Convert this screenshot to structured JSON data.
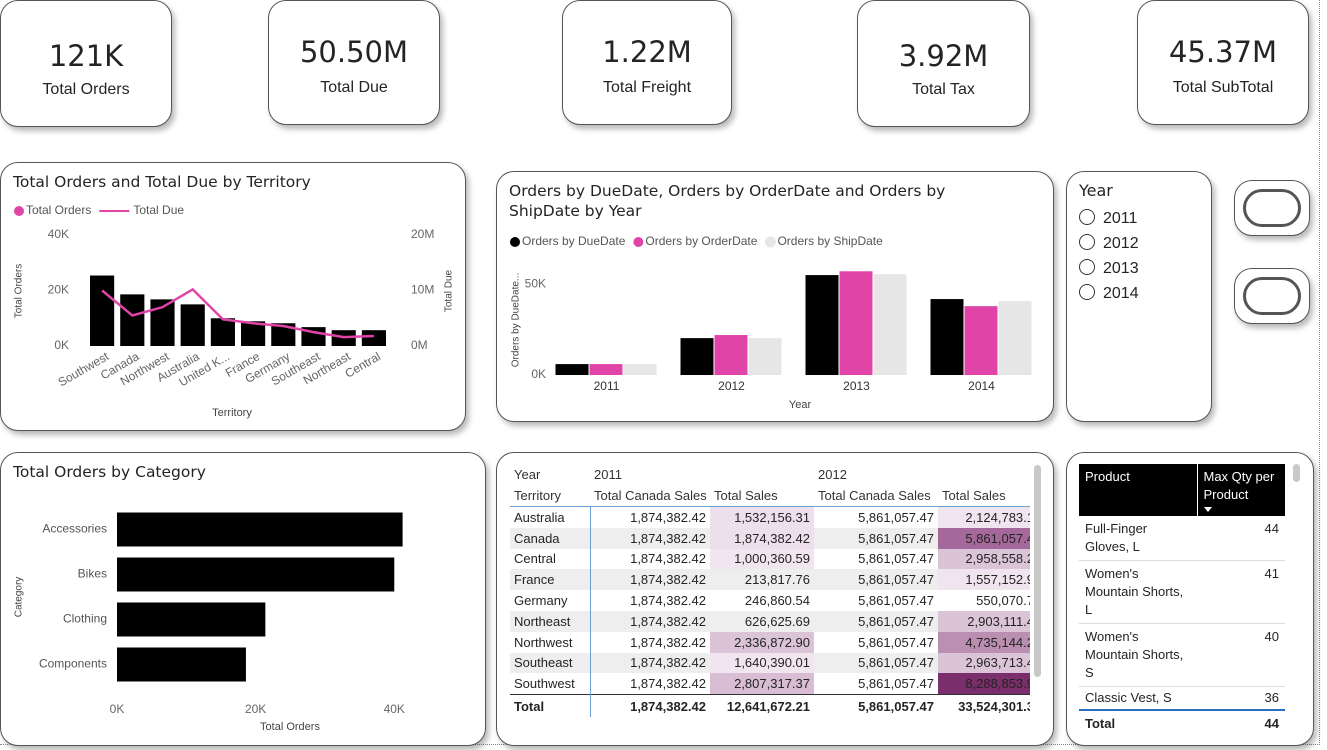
{
  "kpis": [
    {
      "value": "121K",
      "label": "Total Orders"
    },
    {
      "value": "50.50M",
      "label": "Total Due"
    },
    {
      "value": "1.22M",
      "label": "Total Freight"
    },
    {
      "value": "3.92M",
      "label": "Total Tax"
    },
    {
      "value": "45.37M",
      "label": "Total SubTotal"
    }
  ],
  "chart_data": [
    {
      "type": "bar_line",
      "title": "Total Orders and Total Due by Territory",
      "categories": [
        "Southwest",
        "Canada",
        "Northwest",
        "Australia",
        "United K...",
        "France",
        "Germany",
        "Southeast",
        "Northeast",
        "Central"
      ],
      "series": [
        {
          "name": "Total Orders",
          "color": "#000000",
          "legend_color": "#e044a7",
          "values": [
            25400,
            18600,
            16800,
            15000,
            10000,
            8900,
            8200,
            6800,
            5700,
            5700
          ]
        },
        {
          "name": "Total Due",
          "color": "#e044a7",
          "axis": "y2",
          "values": [
            10000000,
            5500000,
            7000000,
            10200000,
            4800000,
            4100000,
            3600000,
            2500000,
            1600000,
            1800000
          ]
        }
      ],
      "ylim": [
        0,
        40000
      ],
      "yticks": [
        {
          "value": 0,
          "label": "0K"
        },
        {
          "value": 20000,
          "label": "20K"
        },
        {
          "value": 40000,
          "label": "40K"
        }
      ],
      "y2lim": [
        0,
        20000000
      ],
      "y2ticks": [
        {
          "value": 0,
          "label": "0M"
        },
        {
          "value": 10000000,
          "label": "10M"
        },
        {
          "value": 20000000,
          "label": "20M"
        }
      ],
      "xlabel": "Territory",
      "ylabel": "Total Orders",
      "y2label": "Total Due"
    },
    {
      "type": "grouped_bar",
      "title": "Orders by DueDate, Orders by OrderDate and Orders by ShipDate by Year",
      "categories": [
        "2011",
        "2012",
        "2013",
        "2014"
      ],
      "series": [
        {
          "name": "Orders by DueDate",
          "color": "#000000",
          "values": [
            6000,
            20300,
            55000,
            41800
          ]
        },
        {
          "name": "Orders by OrderDate",
          "color": "#e044a7",
          "values": [
            6000,
            22000,
            57100,
            37900
          ]
        },
        {
          "name": "Orders by ShipDate",
          "color": "#e6e6e6",
          "values": [
            6000,
            20300,
            55500,
            40700
          ]
        }
      ],
      "ylim": [
        0,
        60000
      ],
      "yticks": [
        {
          "value": 0,
          "label": "0K"
        },
        {
          "value": 50000,
          "label": "50K"
        }
      ],
      "xlabel": "Year",
      "ylabel": "Orders by DueDate..."
    },
    {
      "type": "hbar",
      "title": "Total Orders by Category",
      "categories": [
        "Accessories",
        "Bikes",
        "Clothing",
        "Components"
      ],
      "values": [
        41200,
        40000,
        21400,
        18600
      ],
      "color": "#000000",
      "xlim": [
        0,
        44000
      ],
      "xticks": [
        {
          "value": 0,
          "label": "0K"
        },
        {
          "value": 20000,
          "label": "20K"
        },
        {
          "value": 40000,
          "label": "40K"
        }
      ],
      "xlabel": "Total Orders",
      "ylabel": "Category"
    }
  ],
  "slicer": {
    "title": "Year",
    "items": [
      "2011",
      "2012",
      "2013",
      "2014"
    ]
  },
  "matrix": {
    "corner": [
      "Year",
      "Territory"
    ],
    "years": [
      "2011",
      "2012"
    ],
    "measures": [
      "Total Canada Sales",
      "Total Sales"
    ],
    "rows": [
      [
        "Australia",
        "1,874,382.42",
        "1,532,156.31",
        "5,861,057.47",
        "2,124,783.1"
      ],
      [
        "Canada",
        "1,874,382.42",
        "1,874,382.42",
        "5,861,057.47",
        "5,861,057.4"
      ],
      [
        "Central",
        "1,874,382.42",
        "1,000,360.59",
        "5,861,057.47",
        "2,958,558.2"
      ],
      [
        "France",
        "1,874,382.42",
        "213,817.76",
        "5,861,057.47",
        "1,557,152.9"
      ],
      [
        "Germany",
        "1,874,382.42",
        "246,860.54",
        "5,861,057.47",
        "550,070.7"
      ],
      [
        "Northeast",
        "1,874,382.42",
        "626,625.69",
        "5,861,057.47",
        "2,903,111.4"
      ],
      [
        "Northwest",
        "1,874,382.42",
        "2,336,872.90",
        "5,861,057.47",
        "4,735,144.2"
      ],
      [
        "Southeast",
        "1,874,382.42",
        "1,640,390.01",
        "5,861,057.47",
        "2,963,713.4"
      ],
      [
        "Southwest",
        "1,874,382.42",
        "2,807,317.37",
        "5,861,057.47",
        "8,288,853.9"
      ]
    ],
    "total": [
      "Total",
      "1,874,382.42",
      "12,641,672.21",
      "5,861,057.47",
      "33,524,301.3"
    ]
  },
  "product_table": {
    "columns": [
      "Product",
      "Max Qty per Product"
    ],
    "rows": [
      [
        "Full-Finger Gloves, L",
        44
      ],
      [
        "Women's Mountain Shorts, L",
        41
      ],
      [
        "Women's Mountain Shorts, S",
        40
      ],
      [
        "Classic Vest, S",
        36
      ]
    ],
    "total": [
      "Total",
      44
    ]
  }
}
